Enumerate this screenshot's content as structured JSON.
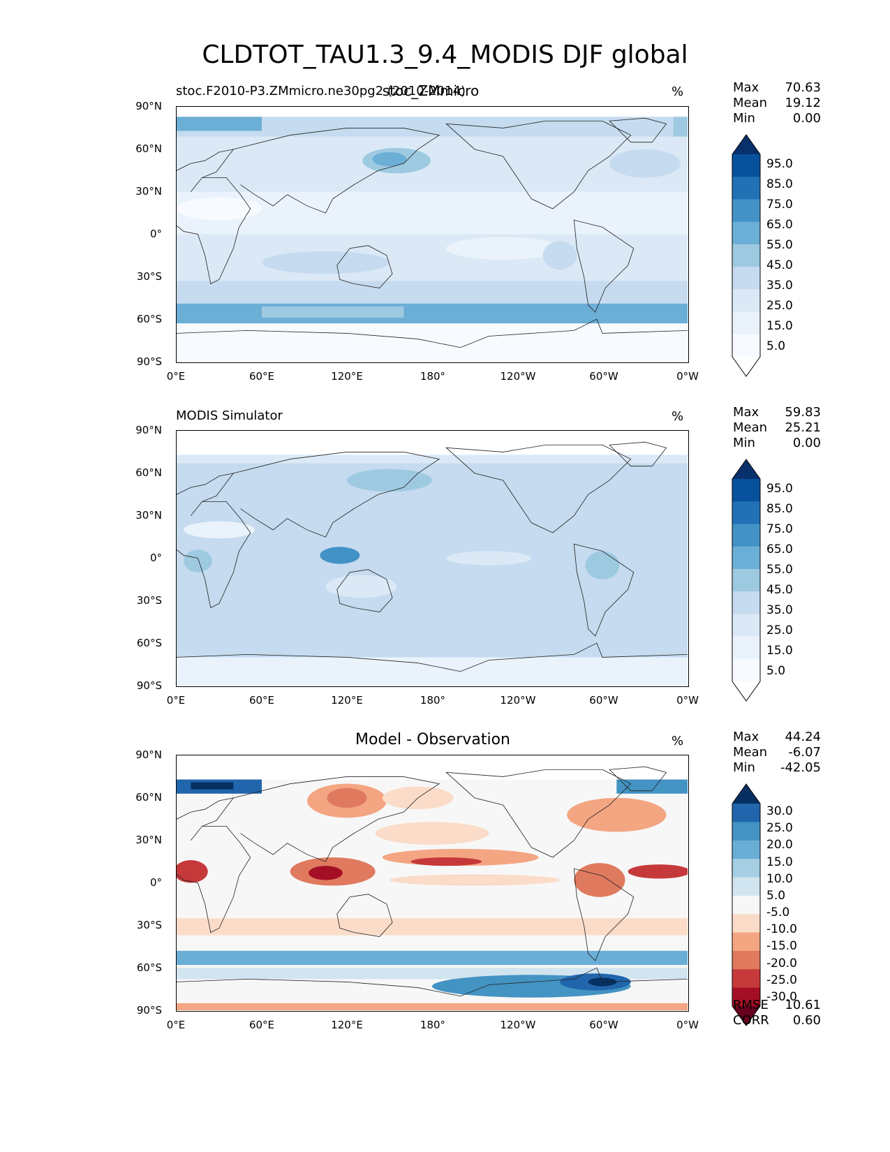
{
  "figure": {
    "title": "CLDTOT_TAU1.3_9.4_MODIS DJF global"
  },
  "lat_ticks": [
    "90°N",
    "60°N",
    "30°N",
    "0°",
    "30°S",
    "60°S",
    "90°S"
  ],
  "lon_ticks": [
    "0°E",
    "60°E",
    "120°E",
    "180°",
    "120°W",
    "60°W",
    "0°W"
  ],
  "panels": [
    {
      "name": "model",
      "title_left": "stoc.F2010-P3.ZMmicro.ne30pg2 (2010-2014)",
      "title_center": "stoc_ZMmicro",
      "units": "%",
      "stats": [
        {
          "label": "Max",
          "value": "70.63"
        },
        {
          "label": "Mean",
          "value": "19.12"
        },
        {
          "label": "Min",
          "value": "0.00"
        }
      ],
      "colorbar": {
        "levels": [
          "95.0",
          "85.0",
          "75.0",
          "65.0",
          "55.0",
          "45.0",
          "35.0",
          "25.0",
          "15.0",
          "5.0"
        ],
        "colors": [
          "#08306b",
          "#08519c",
          "#2171b5",
          "#4292c6",
          "#6baed6",
          "#9ecae1",
          "#c6dbef",
          "#dbe9f6",
          "#eaf3fb",
          "#f7fbff",
          "#ffffff"
        ]
      }
    },
    {
      "name": "obs",
      "title_left": "MODIS Simulator",
      "title_center": "",
      "units": "%",
      "stats": [
        {
          "label": "Max",
          "value": "59.83"
        },
        {
          "label": "Mean",
          "value": "25.21"
        },
        {
          "label": "Min",
          "value": "0.00"
        }
      ],
      "colorbar": {
        "levels": [
          "95.0",
          "85.0",
          "75.0",
          "65.0",
          "55.0",
          "45.0",
          "35.0",
          "25.0",
          "15.0",
          "5.0"
        ],
        "colors": [
          "#08306b",
          "#08519c",
          "#2171b5",
          "#4292c6",
          "#6baed6",
          "#9ecae1",
          "#c6dbef",
          "#dbe9f6",
          "#eaf3fb",
          "#f7fbff",
          "#ffffff"
        ]
      }
    },
    {
      "name": "diff",
      "title_left": "",
      "title_center": "Model - Observation",
      "units": "%",
      "stats": [
        {
          "label": "Max",
          "value": "44.24"
        },
        {
          "label": "Mean",
          "value": "-6.07"
        },
        {
          "label": "Min",
          "value": "-42.05"
        }
      ],
      "extra_stats": [
        {
          "label": "RMSE",
          "value": "10.61"
        },
        {
          "label": "CORR",
          "value": "0.60"
        }
      ],
      "colorbar": {
        "levels": [
          "30.0",
          "25.0",
          "20.0",
          "15.0",
          "10.0",
          "5.0",
          "-5.0",
          "-10.0",
          "-15.0",
          "-20.0",
          "-25.0",
          "-30.0"
        ],
        "colors": [
          "#053061",
          "#2166ac",
          "#4393c3",
          "#6aaed6",
          "#a6cfe4",
          "#d1e5f0",
          "#f7f7f7",
          "#fbdcc8",
          "#f4a582",
          "#e07a5f",
          "#c6393b",
          "#a50f25",
          "#67001f"
        ]
      }
    }
  ]
}
